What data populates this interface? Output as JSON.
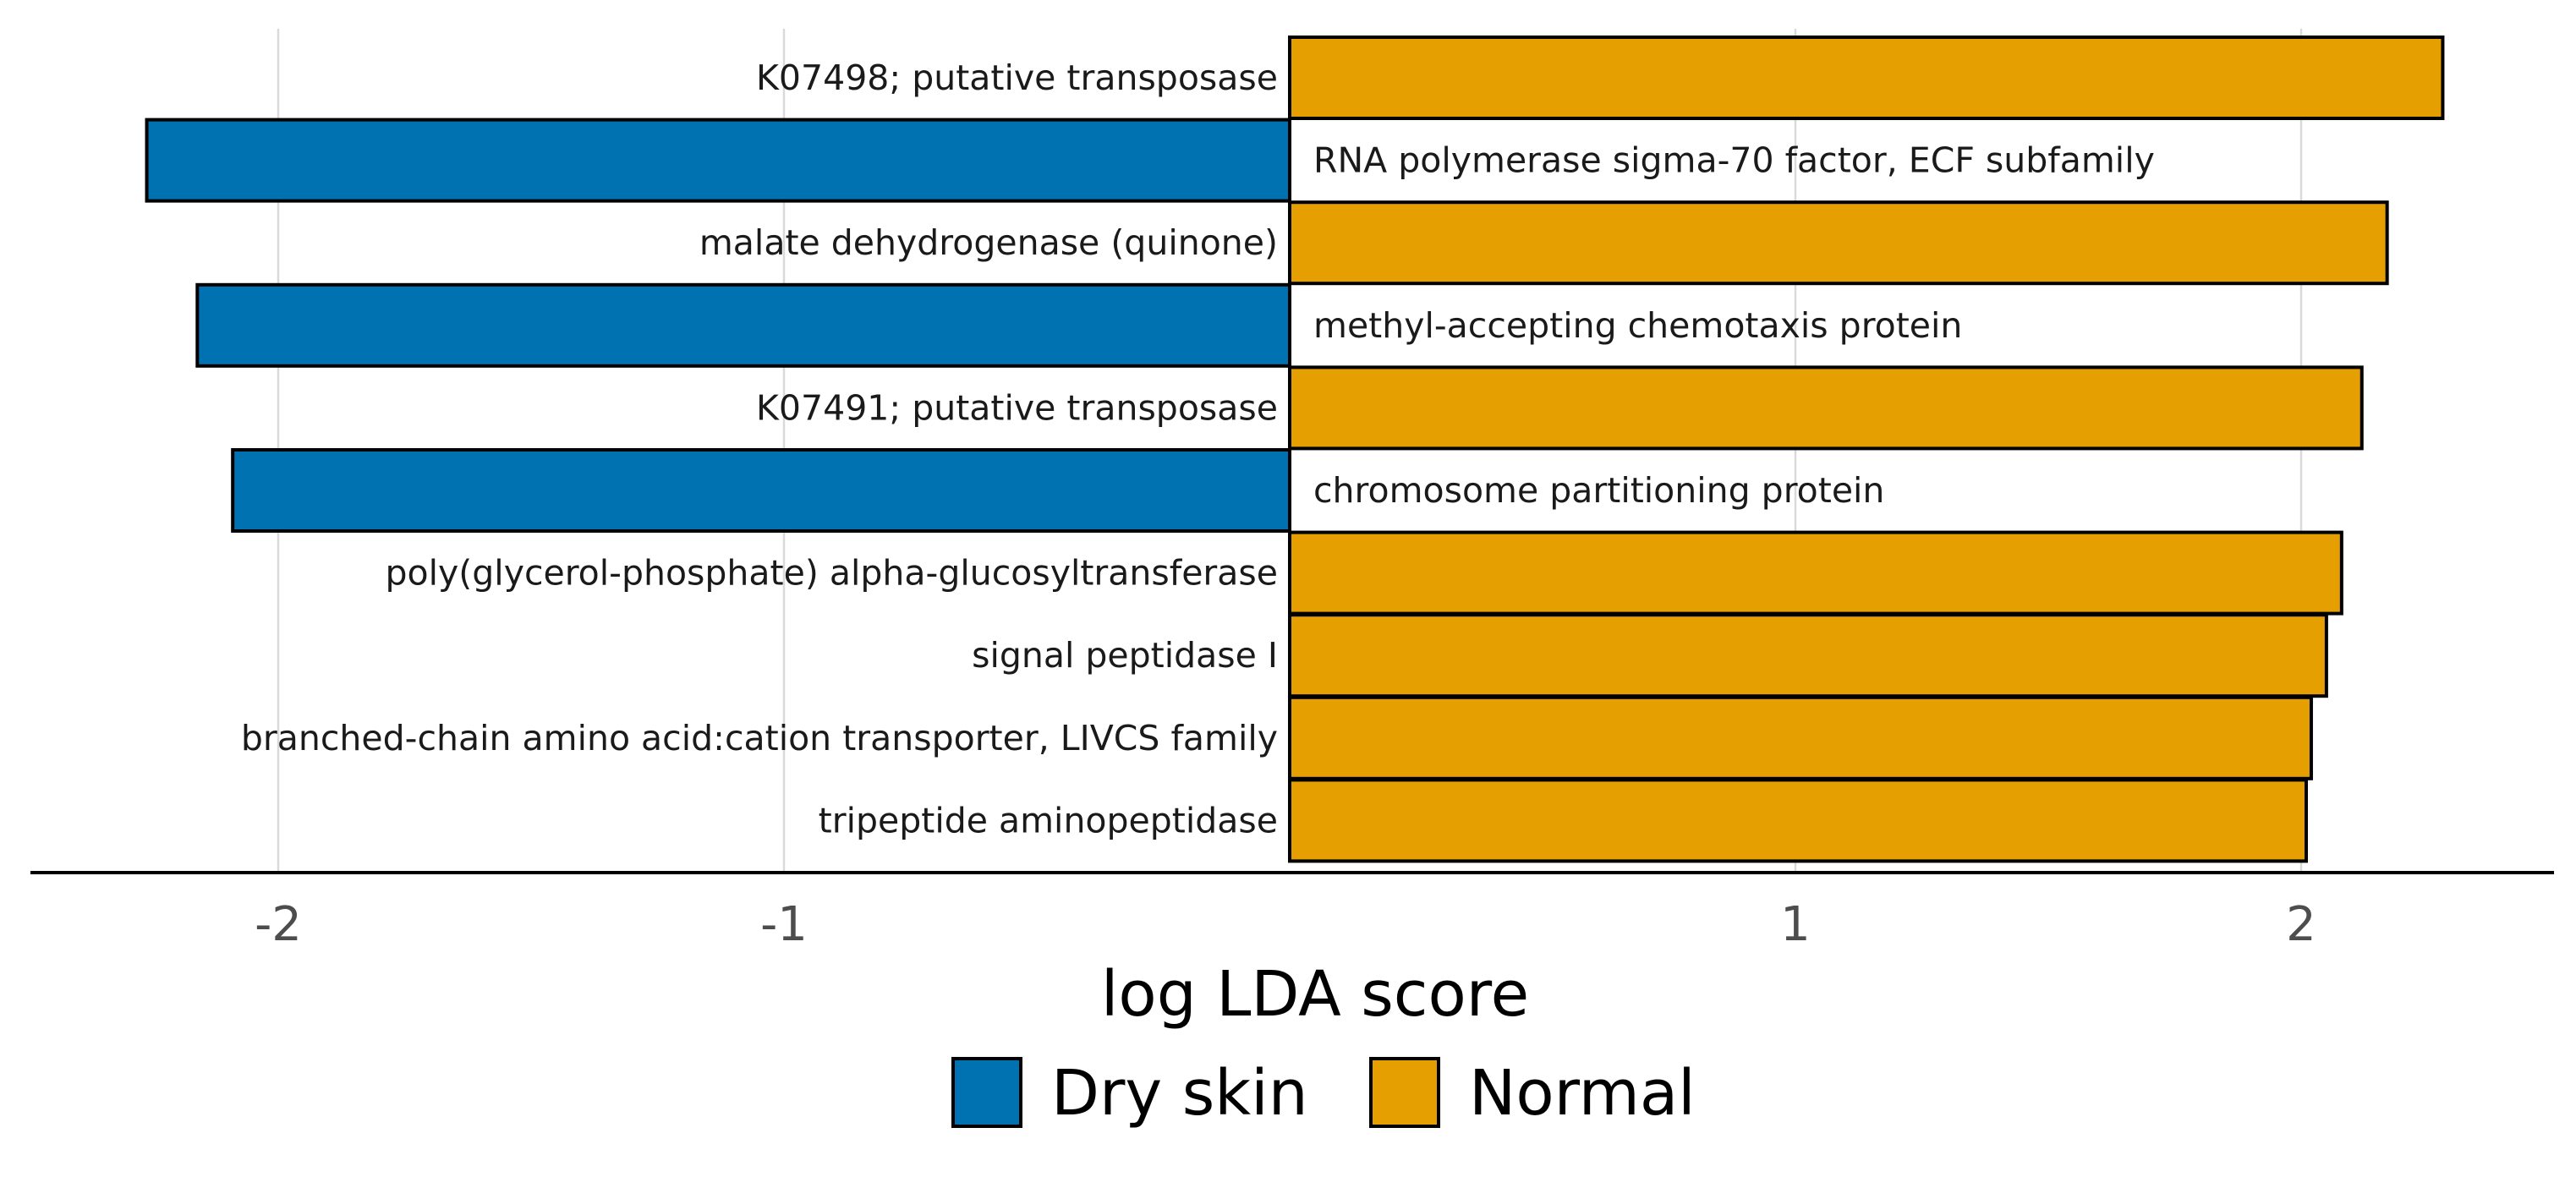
{
  "chart_data": {
    "type": "bar",
    "orientation": "horizontal",
    "title": "",
    "xlabel": "log LDA score",
    "ylabel": "",
    "xlim": [
      -2.5,
      2.5
    ],
    "x_ticks": [
      {
        "value": -2,
        "label": "-2"
      },
      {
        "value": -1,
        "label": "-1"
      },
      {
        "value": 1,
        "label": "1"
      },
      {
        "value": 2,
        "label": "2"
      }
    ],
    "grid": true,
    "legend_position": "bottom",
    "legend": [
      {
        "group": "dry",
        "label": "Dry skin",
        "color": "#0072B2"
      },
      {
        "group": "normal",
        "label": "Normal",
        "color": "#E69F00"
      }
    ],
    "bars": [
      {
        "label": "K07498; putative transposase",
        "value": 2.28,
        "group": "normal"
      },
      {
        "label": "RNA polymerase sigma-70 factor, ECF subfamily",
        "value": -2.26,
        "group": "dry"
      },
      {
        "label": "malate dehydrogenase (quinone)",
        "value": 2.17,
        "group": "normal"
      },
      {
        "label": "methyl-accepting chemotaxis protein",
        "value": -2.16,
        "group": "dry"
      },
      {
        "label": "K07491; putative transposase",
        "value": 2.12,
        "group": "normal"
      },
      {
        "label": "chromosome partitioning protein",
        "value": -2.09,
        "group": "dry"
      },
      {
        "label": "poly(glycerol-phosphate) alpha-glucosyltransferase",
        "value": 2.08,
        "group": "normal"
      },
      {
        "label": "signal peptidase I",
        "value": 2.05,
        "group": "normal"
      },
      {
        "label": "branched-chain amino acid:cation transporter, LIVCS family",
        "value": 2.02,
        "group": "normal"
      },
      {
        "label": "tripeptide aminopeptidase",
        "value": 2.01,
        "group": "normal"
      }
    ]
  }
}
